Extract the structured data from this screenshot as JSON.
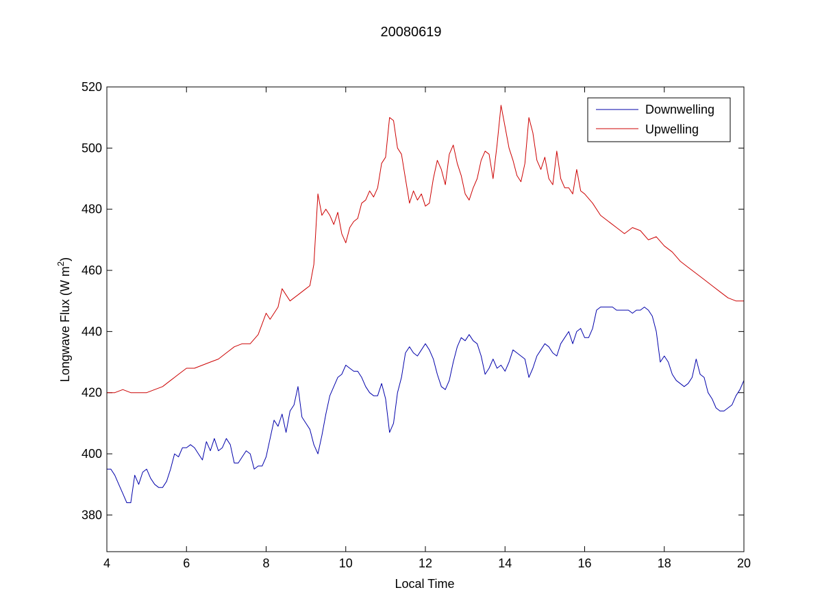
{
  "chart_data": {
    "type": "line",
    "title": "20080619",
    "xlabel": "Local Time",
    "ylabel_main": "Longwave Flux (W m",
    "ylabel_sup": "2",
    "ylabel_end": ")",
    "xlim": [
      4,
      20
    ],
    "ylim": [
      368,
      520
    ],
    "xticks": [
      4,
      6,
      8,
      10,
      12,
      14,
      16,
      18,
      20
    ],
    "yticks": [
      380,
      400,
      420,
      440,
      460,
      480,
      500,
      520
    ],
    "legend_position": "top-right",
    "series": [
      {
        "name": "Downwelling",
        "color": "#0000aa",
        "points": [
          [
            4.0,
            395
          ],
          [
            4.1,
            395
          ],
          [
            4.2,
            393
          ],
          [
            4.3,
            390
          ],
          [
            4.4,
            387
          ],
          [
            4.5,
            384
          ],
          [
            4.6,
            384
          ],
          [
            4.7,
            393
          ],
          [
            4.8,
            390
          ],
          [
            4.9,
            394
          ],
          [
            5.0,
            395
          ],
          [
            5.1,
            392
          ],
          [
            5.2,
            390
          ],
          [
            5.3,
            389
          ],
          [
            5.4,
            389
          ],
          [
            5.5,
            391
          ],
          [
            5.6,
            395
          ],
          [
            5.7,
            400
          ],
          [
            5.8,
            399
          ],
          [
            5.9,
            402
          ],
          [
            6.0,
            402
          ],
          [
            6.1,
            403
          ],
          [
            6.2,
            402
          ],
          [
            6.3,
            400
          ],
          [
            6.4,
            398
          ],
          [
            6.5,
            404
          ],
          [
            6.6,
            401
          ],
          [
            6.7,
            405
          ],
          [
            6.8,
            401
          ],
          [
            6.9,
            402
          ],
          [
            7.0,
            405
          ],
          [
            7.1,
            403
          ],
          [
            7.2,
            397
          ],
          [
            7.3,
            397
          ],
          [
            7.4,
            399
          ],
          [
            7.5,
            401
          ],
          [
            7.6,
            400
          ],
          [
            7.7,
            395
          ],
          [
            7.8,
            396
          ],
          [
            7.9,
            396
          ],
          [
            8.0,
            399
          ],
          [
            8.1,
            405
          ],
          [
            8.2,
            411
          ],
          [
            8.3,
            409
          ],
          [
            8.4,
            413
          ],
          [
            8.5,
            407
          ],
          [
            8.6,
            414
          ],
          [
            8.7,
            416
          ],
          [
            8.8,
            422
          ],
          [
            8.9,
            412
          ],
          [
            9.0,
            410
          ],
          [
            9.1,
            408
          ],
          [
            9.2,
            403
          ],
          [
            9.3,
            400
          ],
          [
            9.4,
            406
          ],
          [
            9.5,
            413
          ],
          [
            9.6,
            419
          ],
          [
            9.7,
            422
          ],
          [
            9.8,
            425
          ],
          [
            9.9,
            426
          ],
          [
            10.0,
            429
          ],
          [
            10.1,
            428
          ],
          [
            10.2,
            427
          ],
          [
            10.3,
            427
          ],
          [
            10.4,
            425
          ],
          [
            10.5,
            422
          ],
          [
            10.6,
            420
          ],
          [
            10.7,
            419
          ],
          [
            10.8,
            419
          ],
          [
            10.9,
            423
          ],
          [
            11.0,
            418
          ],
          [
            11.1,
            407
          ],
          [
            11.2,
            410
          ],
          [
            11.3,
            420
          ],
          [
            11.4,
            425
          ],
          [
            11.5,
            433
          ],
          [
            11.6,
            435
          ],
          [
            11.7,
            433
          ],
          [
            11.8,
            432
          ],
          [
            11.9,
            434
          ],
          [
            12.0,
            436
          ],
          [
            12.1,
            434
          ],
          [
            12.2,
            431
          ],
          [
            12.3,
            426
          ],
          [
            12.4,
            422
          ],
          [
            12.5,
            421
          ],
          [
            12.6,
            424
          ],
          [
            12.7,
            430
          ],
          [
            12.8,
            435
          ],
          [
            12.9,
            438
          ],
          [
            13.0,
            437
          ],
          [
            13.1,
            439
          ],
          [
            13.2,
            437
          ],
          [
            13.3,
            436
          ],
          [
            13.4,
            432
          ],
          [
            13.5,
            426
          ],
          [
            13.6,
            428
          ],
          [
            13.7,
            431
          ],
          [
            13.8,
            428
          ],
          [
            13.9,
            429
          ],
          [
            14.0,
            427
          ],
          [
            14.1,
            430
          ],
          [
            14.2,
            434
          ],
          [
            14.3,
            433
          ],
          [
            14.4,
            432
          ],
          [
            14.5,
            431
          ],
          [
            14.6,
            425
          ],
          [
            14.7,
            428
          ],
          [
            14.8,
            432
          ],
          [
            14.9,
            434
          ],
          [
            15.0,
            436
          ],
          [
            15.1,
            435
          ],
          [
            15.2,
            433
          ],
          [
            15.3,
            432
          ],
          [
            15.4,
            436
          ],
          [
            15.5,
            438
          ],
          [
            15.6,
            440
          ],
          [
            15.7,
            436
          ],
          [
            15.8,
            440
          ],
          [
            15.9,
            441
          ],
          [
            16.0,
            438
          ],
          [
            16.1,
            438
          ],
          [
            16.2,
            441
          ],
          [
            16.3,
            447
          ],
          [
            16.4,
            448
          ],
          [
            16.5,
            448
          ],
          [
            16.6,
            448
          ],
          [
            16.7,
            448
          ],
          [
            16.8,
            447
          ],
          [
            16.9,
            447
          ],
          [
            17.0,
            447
          ],
          [
            17.1,
            447
          ],
          [
            17.2,
            446
          ],
          [
            17.3,
            447
          ],
          [
            17.4,
            447
          ],
          [
            17.5,
            448
          ],
          [
            17.6,
            447
          ],
          [
            17.7,
            445
          ],
          [
            17.8,
            440
          ],
          [
            17.9,
            430
          ],
          [
            18.0,
            432
          ],
          [
            18.1,
            430
          ],
          [
            18.2,
            426
          ],
          [
            18.3,
            424
          ],
          [
            18.4,
            423
          ],
          [
            18.5,
            422
          ],
          [
            18.6,
            423
          ],
          [
            18.7,
            425
          ],
          [
            18.8,
            431
          ],
          [
            18.9,
            426
          ],
          [
            19.0,
            425
          ],
          [
            19.1,
            420
          ],
          [
            19.2,
            418
          ],
          [
            19.3,
            415
          ],
          [
            19.4,
            414
          ],
          [
            19.5,
            414
          ],
          [
            19.6,
            415
          ],
          [
            19.7,
            416
          ],
          [
            19.8,
            419
          ],
          [
            19.9,
            421
          ],
          [
            20.0,
            424
          ]
        ]
      },
      {
        "name": "Upwelling",
        "color": "#cc0000",
        "points": [
          [
            4.0,
            420
          ],
          [
            4.2,
            420
          ],
          [
            4.4,
            421
          ],
          [
            4.6,
            420
          ],
          [
            4.8,
            420
          ],
          [
            5.0,
            420
          ],
          [
            5.2,
            421
          ],
          [
            5.4,
            422
          ],
          [
            5.6,
            424
          ],
          [
            5.8,
            426
          ],
          [
            6.0,
            428
          ],
          [
            6.2,
            428
          ],
          [
            6.4,
            429
          ],
          [
            6.6,
            430
          ],
          [
            6.8,
            431
          ],
          [
            7.0,
            433
          ],
          [
            7.2,
            435
          ],
          [
            7.4,
            436
          ],
          [
            7.6,
            436
          ],
          [
            7.8,
            439
          ],
          [
            8.0,
            446
          ],
          [
            8.1,
            444
          ],
          [
            8.2,
            446
          ],
          [
            8.3,
            448
          ],
          [
            8.4,
            454
          ],
          [
            8.5,
            452
          ],
          [
            8.6,
            450
          ],
          [
            8.7,
            451
          ],
          [
            8.8,
            452
          ],
          [
            8.9,
            453
          ],
          [
            9.0,
            454
          ],
          [
            9.1,
            455
          ],
          [
            9.2,
            462
          ],
          [
            9.3,
            485
          ],
          [
            9.4,
            478
          ],
          [
            9.5,
            480
          ],
          [
            9.6,
            478
          ],
          [
            9.7,
            475
          ],
          [
            9.8,
            479
          ],
          [
            9.9,
            472
          ],
          [
            10.0,
            469
          ],
          [
            10.1,
            474
          ],
          [
            10.2,
            476
          ],
          [
            10.3,
            477
          ],
          [
            10.4,
            482
          ],
          [
            10.5,
            483
          ],
          [
            10.6,
            486
          ],
          [
            10.7,
            484
          ],
          [
            10.8,
            487
          ],
          [
            10.9,
            495
          ],
          [
            11.0,
            497
          ],
          [
            11.1,
            510
          ],
          [
            11.2,
            509
          ],
          [
            11.3,
            500
          ],
          [
            11.4,
            498
          ],
          [
            11.5,
            490
          ],
          [
            11.6,
            482
          ],
          [
            11.7,
            486
          ],
          [
            11.8,
            483
          ],
          [
            11.9,
            485
          ],
          [
            12.0,
            481
          ],
          [
            12.1,
            482
          ],
          [
            12.2,
            490
          ],
          [
            12.3,
            496
          ],
          [
            12.4,
            493
          ],
          [
            12.5,
            488
          ],
          [
            12.6,
            498
          ],
          [
            12.7,
            501
          ],
          [
            12.8,
            495
          ],
          [
            12.9,
            491
          ],
          [
            13.0,
            485
          ],
          [
            13.1,
            483
          ],
          [
            13.2,
            487
          ],
          [
            13.3,
            490
          ],
          [
            13.4,
            496
          ],
          [
            13.5,
            499
          ],
          [
            13.6,
            498
          ],
          [
            13.7,
            490
          ],
          [
            13.8,
            501
          ],
          [
            13.9,
            514
          ],
          [
            14.0,
            507
          ],
          [
            14.1,
            500
          ],
          [
            14.2,
            496
          ],
          [
            14.3,
            491
          ],
          [
            14.4,
            489
          ],
          [
            14.5,
            495
          ],
          [
            14.6,
            510
          ],
          [
            14.7,
            505
          ],
          [
            14.8,
            496
          ],
          [
            14.9,
            493
          ],
          [
            15.0,
            497
          ],
          [
            15.1,
            490
          ],
          [
            15.2,
            488
          ],
          [
            15.3,
            499
          ],
          [
            15.4,
            490
          ],
          [
            15.5,
            487
          ],
          [
            15.6,
            487
          ],
          [
            15.7,
            485
          ],
          [
            15.8,
            493
          ],
          [
            15.9,
            486
          ],
          [
            16.0,
            485
          ],
          [
            16.2,
            482
          ],
          [
            16.4,
            478
          ],
          [
            16.6,
            476
          ],
          [
            16.8,
            474
          ],
          [
            17.0,
            472
          ],
          [
            17.2,
            474
          ],
          [
            17.4,
            473
          ],
          [
            17.6,
            470
          ],
          [
            17.8,
            471
          ],
          [
            18.0,
            468
          ],
          [
            18.2,
            466
          ],
          [
            18.4,
            463
          ],
          [
            18.6,
            461
          ],
          [
            18.8,
            459
          ],
          [
            19.0,
            457
          ],
          [
            19.2,
            455
          ],
          [
            19.4,
            453
          ],
          [
            19.6,
            451
          ],
          [
            19.8,
            450
          ],
          [
            20.0,
            450
          ]
        ]
      }
    ]
  }
}
